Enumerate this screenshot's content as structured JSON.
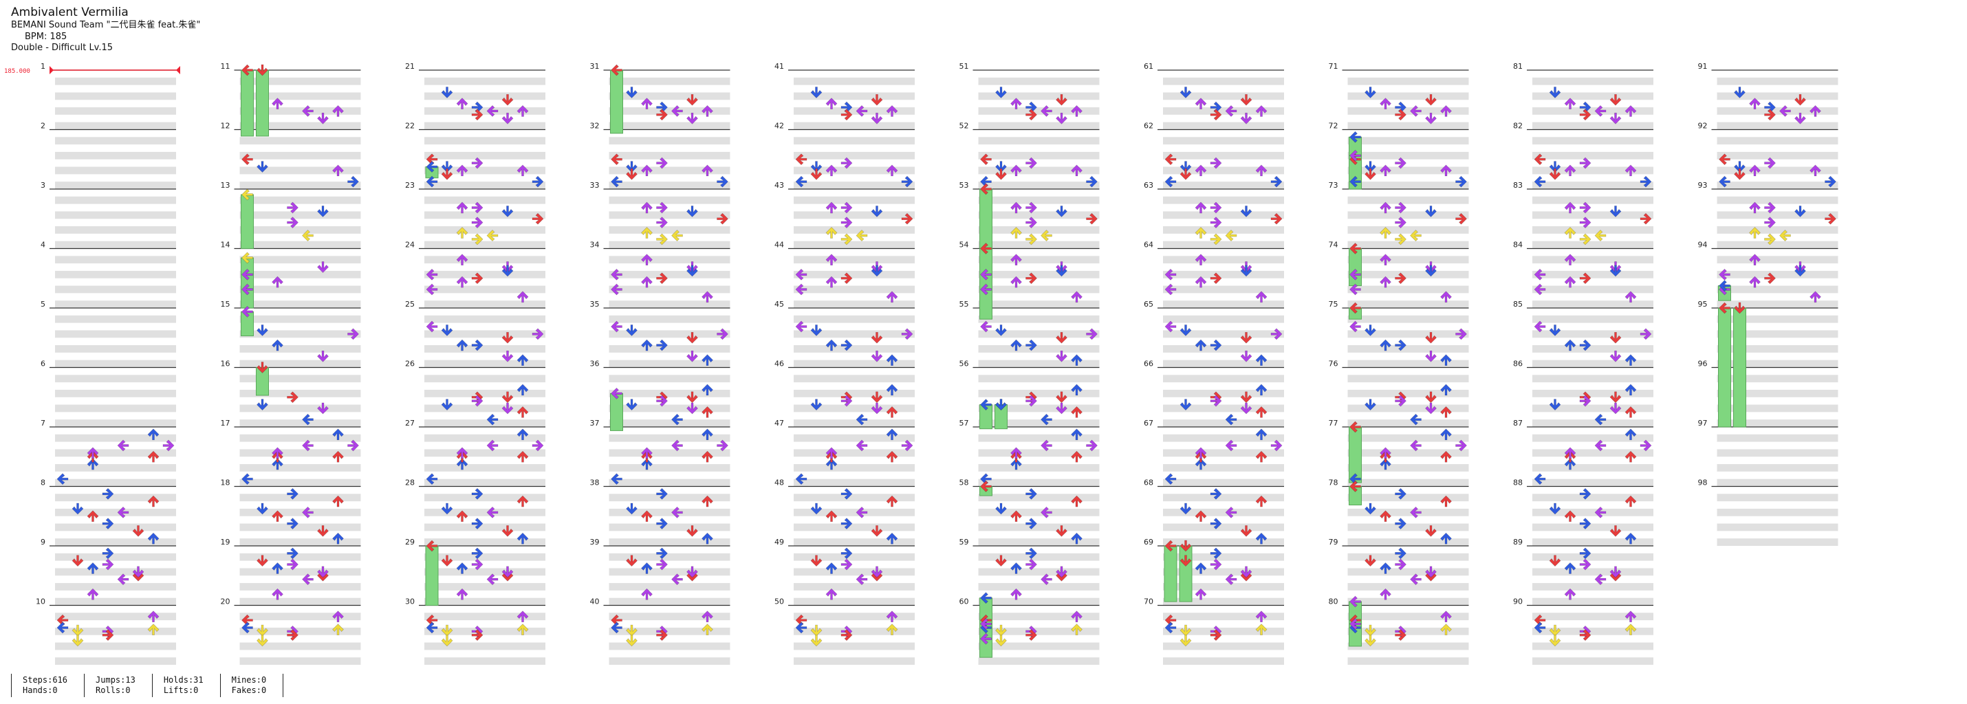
{
  "chart": {
    "title": "Ambivalent Vermilia",
    "artist": "BEMANI Sound Team \"二代目朱雀 feat.朱雀\"",
    "bpm_label": "BPM: 185",
    "difficulty_label": "Double - Difficult  Lv.15",
    "bpm_marker": "185.000",
    "total_measures": 98,
    "measures_per_column": 10,
    "lanes": 8
  },
  "stats": [
    {
      "top": "Steps:616",
      "bottom": "Hands:0"
    },
    {
      "top": "Jumps:13",
      "bottom": "Rolls:0"
    },
    {
      "top": "Holds:31",
      "bottom": "Lifts:0"
    },
    {
      "top": "Mines:0",
      "bottom": "Fakes:0"
    }
  ],
  "arrow_colors": {
    "quarter": "#e83c3c",
    "eighth": "#2f5be0",
    "sixteenth": "#b040e8",
    "other": "#f0dc3c",
    "hold": "#7fd67f"
  },
  "lane_directions": [
    "left",
    "down",
    "up",
    "right",
    "left",
    "down",
    "up",
    "right"
  ],
  "patterns": [
    [
      [
        16,
        0
      ],
      [
        24,
        0
      ],
      [
        26,
        6
      ],
      [
        27,
        1
      ],
      [
        12,
        6
      ],
      [
        28,
        3
      ],
      [
        32,
        3
      ],
      [
        38,
        1
      ]
    ],
    [
      [
        50,
        4
      ],
      [
        24,
        5
      ],
      [
        20,
        3
      ],
      [
        36,
        3
      ],
      [
        20,
        2
      ],
      [
        32,
        7
      ],
      [
        47,
        2
      ],
      [
        54,
        3
      ]
    ],
    [
      [
        32,
        3
      ],
      [
        44,
        5
      ],
      [
        56,
        4
      ],
      [
        40,
        1
      ],
      [
        36,
        3
      ],
      [
        32,
        5
      ],
      [
        24,
        6
      ],
      [
        48,
        6
      ]
    ],
    [
      [
        8,
        3
      ],
      [
        16,
        1
      ],
      [
        24,
        2
      ],
      [
        32,
        5
      ],
      [
        36,
        4
      ],
      [
        28,
        5
      ],
      [
        20,
        3
      ],
      [
        52,
        2
      ]
    ],
    [
      [
        32,
        0
      ],
      [
        44,
        6
      ],
      [
        56,
        7
      ],
      [
        40,
        1
      ],
      [
        36,
        3
      ],
      [
        44,
        2
      ],
      [
        48,
        1
      ],
      [
        56,
        0
      ]
    ],
    [
      [
        24,
        1
      ],
      [
        52,
        5
      ],
      [
        40,
        2
      ],
      [
        28,
        7
      ],
      [
        20,
        0
      ],
      [
        40,
        3
      ],
      [
        56,
        6
      ],
      [
        32,
        5
      ]
    ],
    [
      [
        16,
        6
      ],
      [
        24,
        1
      ],
      [
        32,
        2
      ],
      [
        48,
        5
      ],
      [
        56,
        6
      ],
      [
        40,
        3
      ],
      [
        28,
        4
      ],
      [
        8,
        3
      ]
    ],
    [
      [
        44,
        4
      ],
      [
        52,
        5
      ],
      [
        36,
        2
      ],
      [
        44,
        6
      ],
      [
        24,
        1
      ],
      [
        32,
        5
      ],
      [
        40,
        3
      ],
      [
        48,
        3
      ]
    ],
    [
      [
        20,
        5
      ],
      [
        36,
        2
      ],
      [
        44,
        0
      ],
      [
        28,
        0
      ],
      [
        52,
        6
      ],
      [
        24,
        5
      ],
      [
        32,
        3
      ],
      [
        12,
        2
      ]
    ],
    [
      [
        40,
        2
      ],
      [
        32,
        6
      ],
      [
        56,
        0
      ],
      [
        20,
        7
      ],
      [
        32,
        2
      ],
      [
        8,
        6
      ],
      [
        28,
        2
      ],
      [
        20,
        4
      ]
    ]
  ],
  "holds": [
    [
      11,
      0,
      0,
      12,
      7,
      0
    ],
    [
      11,
      0,
      0,
      12,
      7,
      1
    ],
    [
      13,
      6,
      0,
      14,
      0,
      0
    ],
    [
      14,
      10,
      0,
      15,
      0,
      0
    ],
    [
      15,
      4,
      0,
      15,
      30,
      0
    ],
    [
      16,
      0,
      0,
      16,
      30,
      1
    ],
    [
      29,
      0,
      0,
      30,
      0,
      0
    ],
    [
      31,
      0,
      0,
      32,
      4,
      0
    ],
    [
      36,
      28,
      0,
      37,
      4,
      0
    ],
    [
      53,
      0,
      0,
      54,
      0,
      0
    ],
    [
      54,
      0,
      0,
      55,
      12,
      0
    ],
    [
      56,
      40,
      0,
      57,
      2,
      0
    ],
    [
      56,
      40,
      0,
      57,
      2,
      1
    ],
    [
      59,
      56,
      0,
      60,
      28,
      0
    ],
    [
      60,
      20,
      0,
      60,
      44,
      0
    ],
    [
      60,
      36,
      0,
      60,
      56,
      0
    ],
    [
      69,
      0,
      0,
      69,
      60,
      0
    ],
    [
      69,
      0,
      0,
      69,
      60,
      1
    ],
    [
      72,
      8,
      0,
      72,
      28,
      0
    ],
    [
      72,
      28,
      0,
      73,
      0,
      0
    ],
    [
      74,
      0,
      0,
      74,
      40,
      0
    ],
    [
      75,
      0,
      0,
      75,
      12,
      0
    ],
    [
      77,
      0,
      0,
      77,
      60,
      0
    ],
    [
      78,
      0,
      0,
      78,
      20,
      0
    ],
    [
      79,
      60,
      0,
      80,
      20,
      0
    ],
    [
      80,
      20,
      0,
      80,
      44,
      0
    ],
    [
      95,
      0,
      0,
      97,
      0,
      0
    ],
    [
      95,
      0,
      0,
      97,
      0,
      1
    ],
    [
      94,
      40,
      0,
      94,
      56,
      0
    ],
    [
      58,
      0,
      0,
      58,
      10,
      0
    ],
    [
      22,
      40,
      0,
      22,
      52,
      0
    ]
  ]
}
